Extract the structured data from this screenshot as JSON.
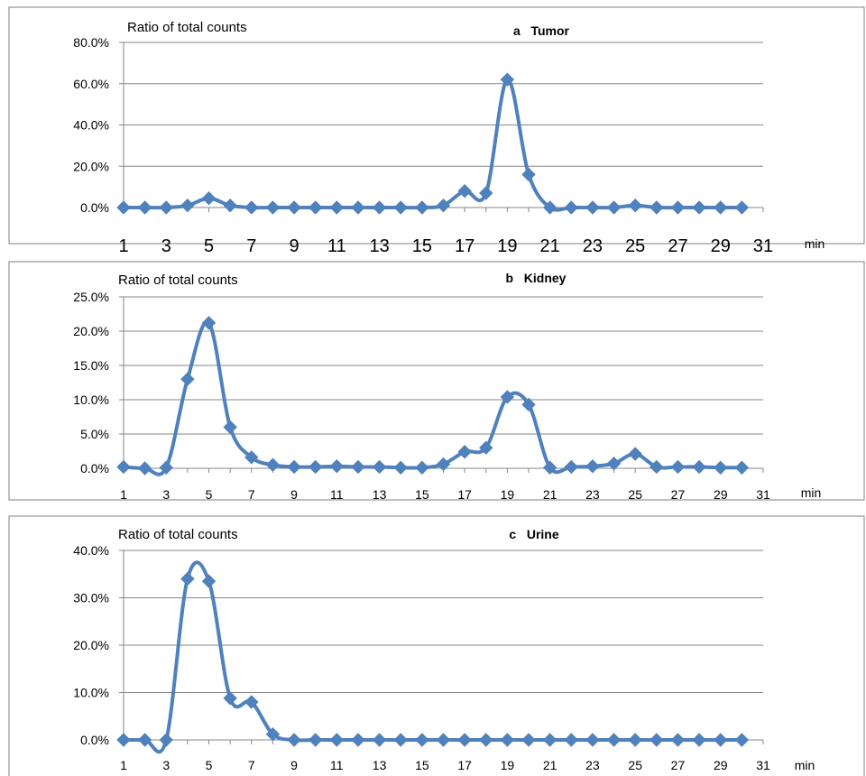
{
  "chart_data": [
    {
      "type": "line",
      "title": "a   Tumor",
      "ylabel": "Ratio of total counts",
      "xunit": "min",
      "ylim": [
        0,
        80
      ],
      "yticks": [
        "0.0%",
        "20.0%",
        "40.0%",
        "60.0%",
        "80.0%"
      ],
      "xticks": [
        "1",
        "3",
        "5",
        "7",
        "9",
        "11",
        "13",
        "15",
        "17",
        "19",
        "21",
        "23",
        "25",
        "27",
        "29",
        "31"
      ],
      "grid": true,
      "series": [
        {
          "color": "#4f81bd",
          "x": [
            1,
            2,
            3,
            4,
            5,
            6,
            7,
            8,
            9,
            10,
            11,
            12,
            13,
            14,
            15,
            16,
            17,
            18,
            19,
            20,
            21,
            22,
            23,
            24,
            25,
            26,
            27,
            28,
            29,
            30
          ],
          "values": [
            0,
            0,
            0,
            1,
            4.5,
            1,
            0,
            0,
            0,
            0,
            0,
            0,
            0,
            0,
            0,
            1,
            8,
            7,
            62,
            16,
            0,
            0,
            0,
            0,
            1,
            0,
            0,
            0,
            0,
            0
          ]
        }
      ]
    },
    {
      "type": "line",
      "title": "b   Kidney",
      "ylabel": "Ratio of total counts",
      "xunit": "min",
      "ylim": [
        0,
        25
      ],
      "yticks": [
        "0.0%",
        "5.0%",
        "10.0%",
        "15.0%",
        "20.0%",
        "25.0%"
      ],
      "xticks": [
        "1",
        "3",
        "5",
        "7",
        "9",
        "11",
        "13",
        "15",
        "17",
        "19",
        "21",
        "23",
        "25",
        "27",
        "29",
        "31"
      ],
      "grid": true,
      "series": [
        {
          "color": "#4f81bd",
          "x": [
            1,
            2,
            3,
            4,
            5,
            6,
            7,
            8,
            9,
            10,
            11,
            12,
            13,
            14,
            15,
            16,
            17,
            18,
            19,
            20,
            21,
            22,
            23,
            24,
            25,
            26,
            27,
            28,
            29,
            30
          ],
          "values": [
            0.2,
            0,
            0.1,
            13,
            21.2,
            6,
            1.6,
            0.5,
            0.2,
            0.2,
            0.3,
            0.2,
            0.2,
            0.1,
            0.1,
            0.6,
            2.4,
            3,
            10.4,
            9.3,
            0.1,
            0.2,
            0.3,
            0.7,
            2.1,
            0.2,
            0.2,
            0.2,
            0.1,
            0.1
          ]
        }
      ]
    },
    {
      "type": "line",
      "title": "c   Urine",
      "ylabel": "Ratio of total counts",
      "xunit": "min",
      "ylim": [
        0,
        40
      ],
      "yticks": [
        "0.0%",
        "10.0%",
        "20.0%",
        "30.0%",
        "40.0%"
      ],
      "xticks": [
        "1",
        "3",
        "5",
        "7",
        "9",
        "11",
        "13",
        "15",
        "17",
        "19",
        "21",
        "23",
        "25",
        "27",
        "29",
        "31"
      ],
      "grid": true,
      "series": [
        {
          "color": "#4f81bd",
          "x": [
            1,
            2,
            3,
            4,
            5,
            6,
            7,
            8,
            9,
            10,
            11,
            12,
            13,
            14,
            15,
            16,
            17,
            18,
            19,
            20,
            21,
            22,
            23,
            24,
            25,
            26,
            27,
            28,
            29,
            30
          ],
          "values": [
            0,
            0,
            0,
            34,
            33.5,
            8.8,
            8,
            1.2,
            0,
            0,
            0,
            0,
            0,
            0,
            0,
            0,
            0,
            0,
            0,
            0,
            0,
            0,
            0,
            0,
            0,
            0,
            0,
            0,
            0,
            0
          ]
        }
      ]
    }
  ]
}
